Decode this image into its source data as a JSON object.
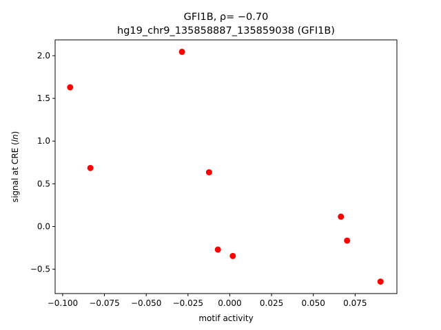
{
  "chart_data": {
    "type": "scatter",
    "title_line1": "GFI1B, ρ= −0.70",
    "title_line2": "hg19_chr9_135858887_135859038 (GFI1B)",
    "xlabel": "motif activity",
    "ylabel": "signal at CRE (ln)",
    "xlim": [
      -0.1045,
      0.1
    ],
    "ylim": [
      -0.785,
      2.185
    ],
    "xticks": [
      -0.1,
      -0.075,
      -0.05,
      -0.025,
      0.0,
      0.025,
      0.05,
      0.075
    ],
    "xtick_labels": [
      "−0.100",
      "−0.075",
      "−0.050",
      "−0.025",
      "0.000",
      "0.025",
      "0.050",
      "0.075"
    ],
    "yticks": [
      -0.5,
      0.0,
      0.5,
      1.0,
      1.5,
      2.0
    ],
    "ytick_labels": [
      "−0.5",
      "0.0",
      "0.5",
      "1.0",
      "1.5",
      "2.0"
    ],
    "grid": false,
    "marker_color": "#ff0000",
    "points": [
      {
        "x": -0.0955,
        "y": 1.63
      },
      {
        "x": -0.0834,
        "y": 0.685
      },
      {
        "x": -0.0286,
        "y": 2.045
      },
      {
        "x": -0.0124,
        "y": 0.635
      },
      {
        "x": -0.0071,
        "y": -0.27
      },
      {
        "x": 0.0018,
        "y": -0.345
      },
      {
        "x": 0.0665,
        "y": 0.115
      },
      {
        "x": 0.0702,
        "y": -0.165
      },
      {
        "x": 0.0902,
        "y": -0.645
      }
    ]
  }
}
